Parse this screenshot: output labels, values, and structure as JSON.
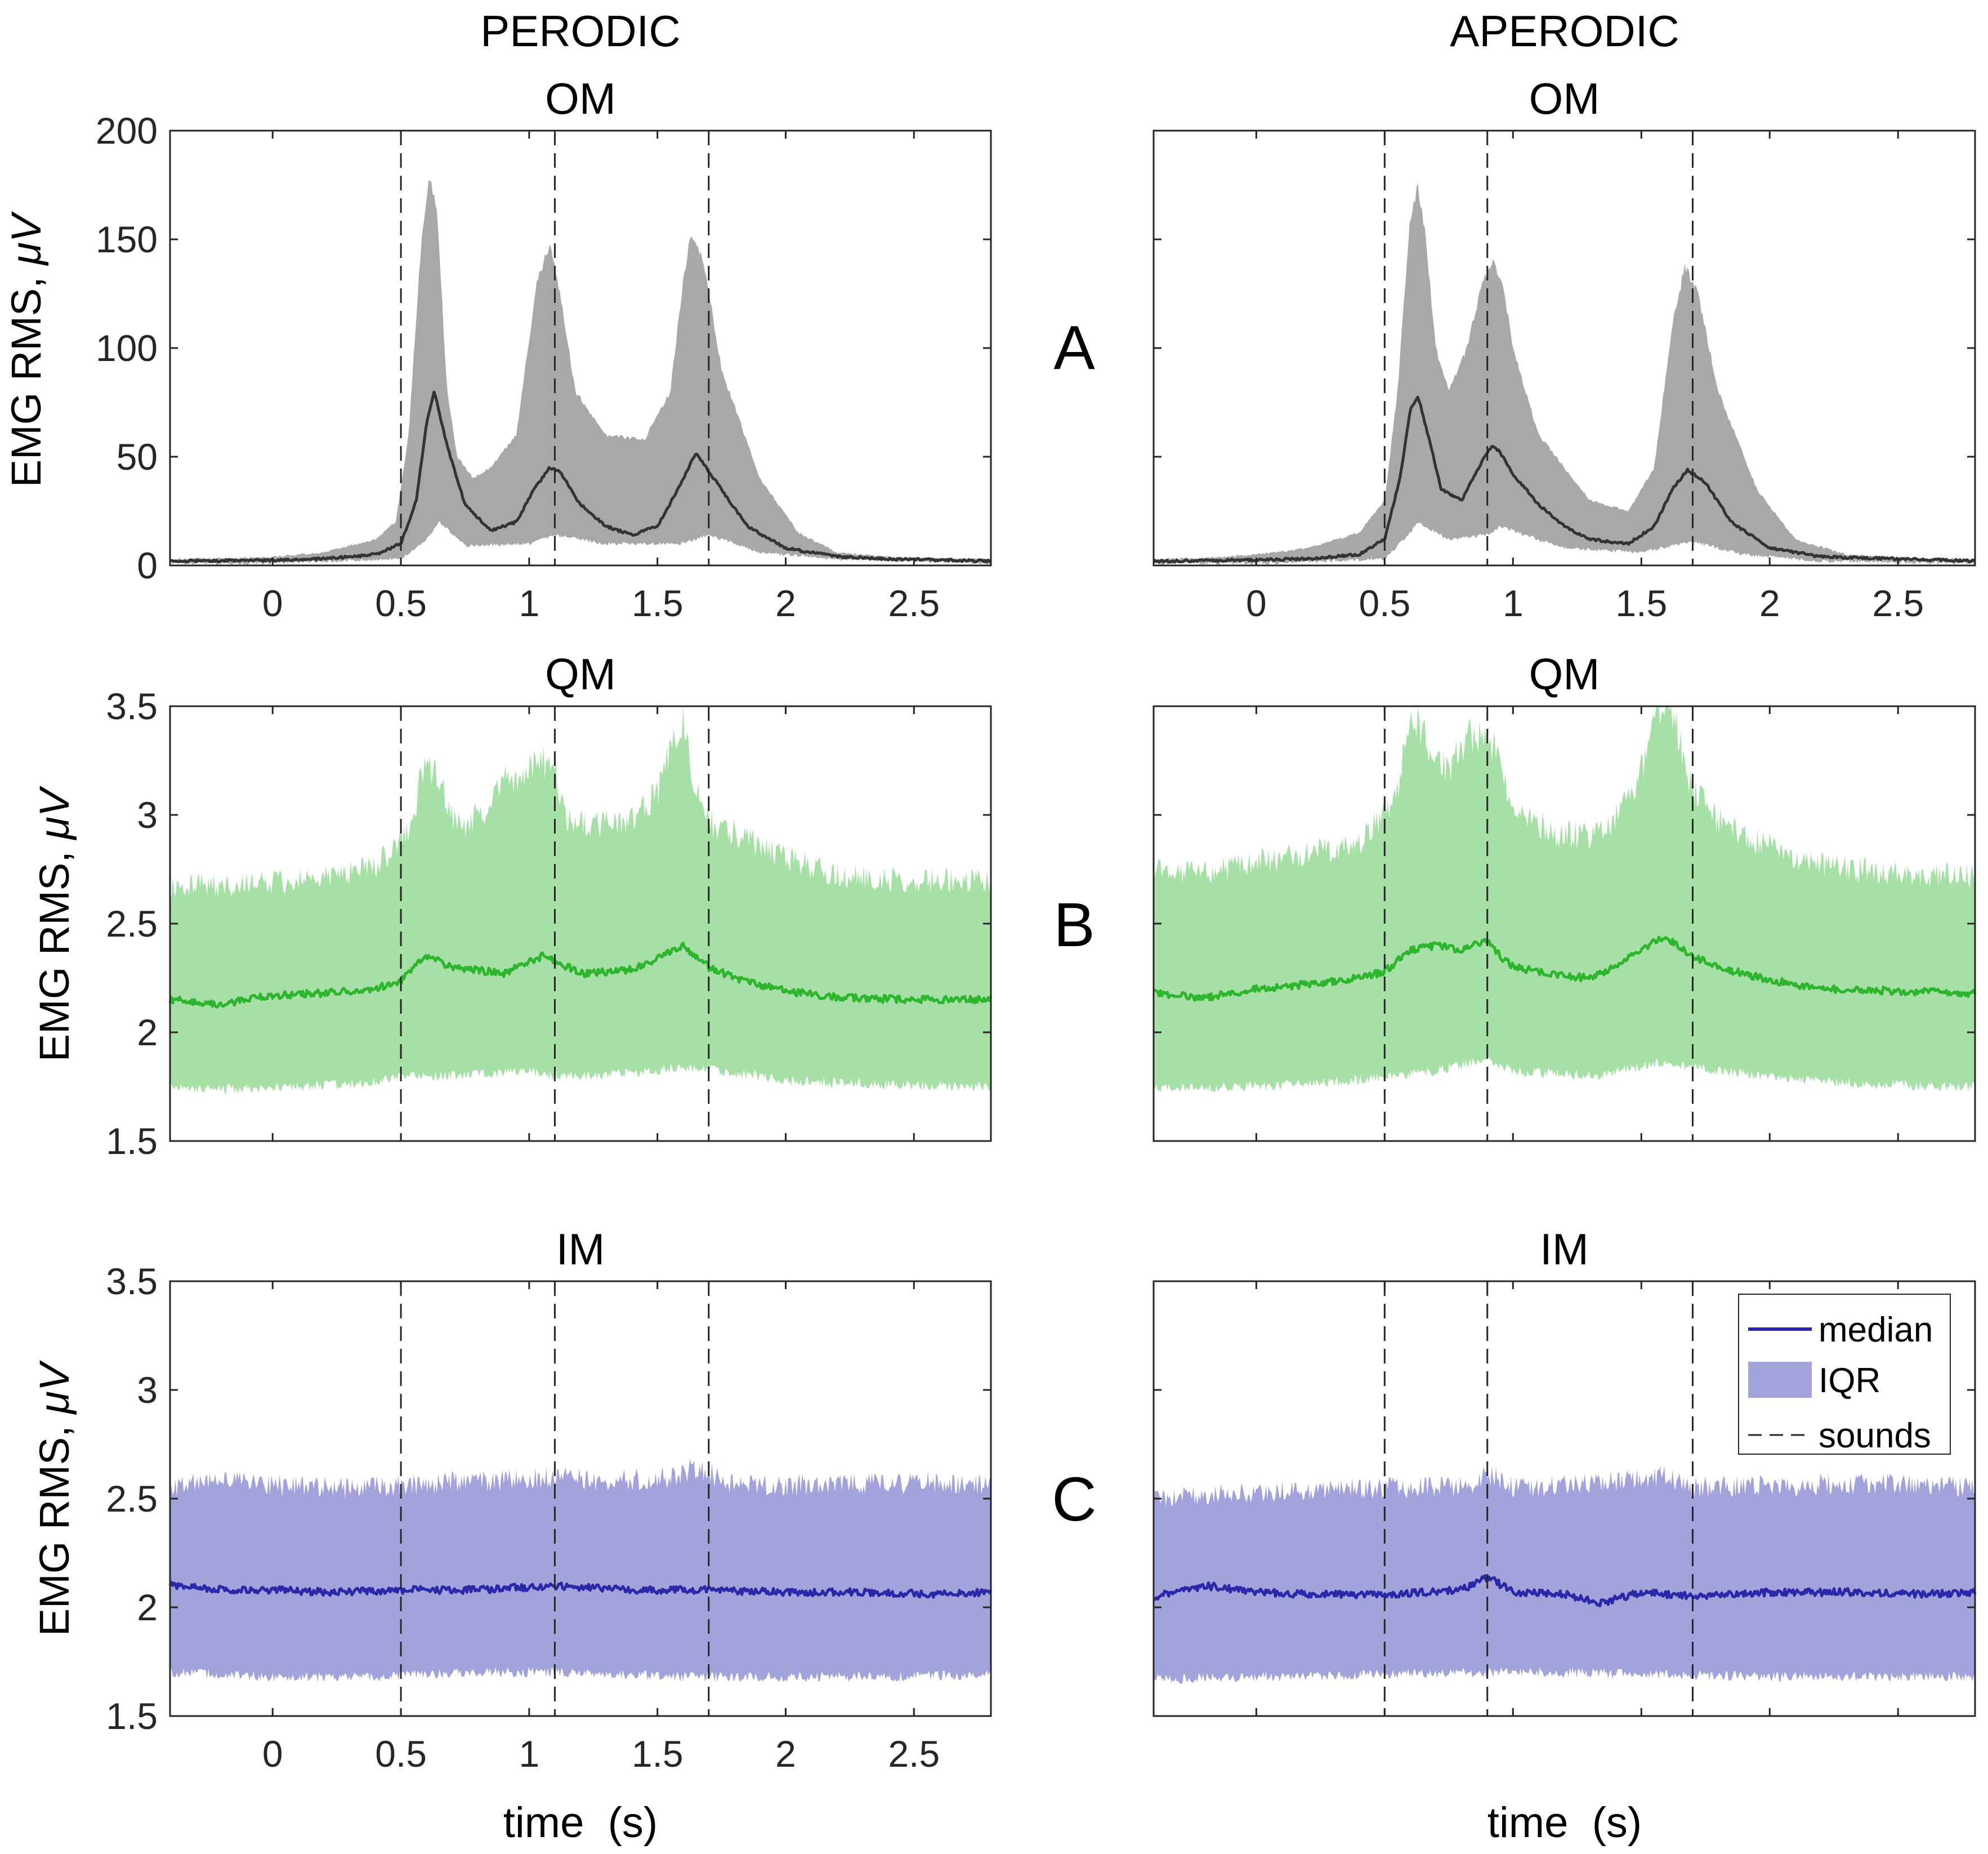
{
  "columns": [
    {
      "title": "PERODIC"
    },
    {
      "title": "APERODIC"
    }
  ],
  "rows": [
    {
      "letter": "A",
      "color": "#333333",
      "band_color": "#a8a8a8"
    },
    {
      "letter": "B",
      "color": "#2db52d",
      "band_color": "#a6e0a6"
    },
    {
      "letter": "C",
      "color": "#2828a8",
      "band_color": "#a3a3dc"
    }
  ],
  "xlabel": "time  (s)",
  "ylabel_prefix": "EMG RMS, ",
  "ylabel_unit": "μV",
  "legend": {
    "median": "median",
    "iqr": "IQR",
    "sounds": "sounds"
  },
  "chart_data": [
    {
      "type": "area",
      "panel": "periodic-OM",
      "title": "OM",
      "xlim": [
        -0.4,
        2.8
      ],
      "ylim": [
        0,
        200
      ],
      "xticks": [
        0,
        0.5,
        1,
        1.5,
        2,
        2.5
      ],
      "yticks": [
        0,
        50,
        100,
        150,
        200
      ],
      "sounds": [
        0.5,
        1.1,
        1.7
      ],
      "series": [
        {
          "name": "median",
          "x": [
            -0.4,
            -0.2,
            0,
            0.2,
            0.4,
            0.5,
            0.56,
            0.6,
            0.63,
            0.68,
            0.75,
            0.85,
            0.95,
            1.02,
            1.08,
            1.12,
            1.2,
            1.3,
            1.4,
            1.5,
            1.58,
            1.65,
            1.72,
            1.85,
            2.0,
            2.2,
            2.4,
            2.6,
            2.8
          ],
          "y": [
            2,
            2.2,
            2.5,
            3,
            5,
            10,
            30,
            65,
            80,
            55,
            28,
            16,
            20,
            35,
            45,
            43,
            28,
            18,
            14,
            18,
            35,
            52,
            40,
            18,
            8,
            4,
            3,
            2.5,
            2
          ]
        },
        {
          "name": "IQR upper",
          "x": [
            -0.4,
            -0.2,
            0,
            0.2,
            0.4,
            0.48,
            0.53,
            0.58,
            0.61,
            0.64,
            0.68,
            0.72,
            0.78,
            0.85,
            0.95,
            1.03,
            1.08,
            1.12,
            1.18,
            1.3,
            1.45,
            1.55,
            1.6,
            1.63,
            1.68,
            1.75,
            1.9,
            2.05,
            2.2,
            2.4,
            2.6,
            2.8
          ],
          "y": [
            3,
            3.2,
            4,
            6,
            12,
            20,
            60,
            150,
            178,
            165,
            80,
            50,
            40,
            45,
            60,
            130,
            148,
            125,
            80,
            60,
            58,
            80,
            130,
            152,
            140,
            90,
            40,
            15,
            6,
            4,
            3,
            3
          ]
        },
        {
          "name": "IQR lower",
          "x": [
            -0.4,
            0,
            0.5,
            0.6,
            0.65,
            0.75,
            1.0,
            1.1,
            1.3,
            1.6,
            1.7,
            1.9,
            2.2,
            2.8
          ],
          "y": [
            1,
            1,
            3,
            12,
            20,
            9,
            10,
            14,
            10,
            10,
            14,
            6,
            3,
            1
          ]
        }
      ]
    },
    {
      "type": "area",
      "panel": "aperiodic-OM",
      "title": "OM",
      "xlim": [
        -0.4,
        2.8
      ],
      "ylim": [
        0,
        200
      ],
      "xticks": [
        0,
        0.5,
        1,
        1.5,
        2,
        2.5
      ],
      "sounds": [
        0.5,
        0.9,
        1.7
      ],
      "series": [
        {
          "name": "median",
          "x": [
            -0.4,
            -0.2,
            0,
            0.2,
            0.4,
            0.5,
            0.56,
            0.6,
            0.63,
            0.68,
            0.72,
            0.8,
            0.88,
            0.92,
            0.95,
            1.0,
            1.1,
            1.2,
            1.3,
            1.45,
            1.55,
            1.62,
            1.68,
            1.75,
            1.85,
            2.0,
            2.2,
            2.5,
            2.8
          ],
          "y": [
            2,
            2.2,
            2.5,
            3,
            5,
            12,
            40,
            72,
            78,
            55,
            35,
            30,
            48,
            55,
            52,
            42,
            28,
            18,
            12,
            10,
            18,
            35,
            44,
            38,
            20,
            8,
            4,
            3,
            2
          ]
        },
        {
          "name": "IQR upper",
          "x": [
            -0.4,
            -0.2,
            0,
            0.2,
            0.4,
            0.5,
            0.55,
            0.6,
            0.63,
            0.66,
            0.7,
            0.75,
            0.82,
            0.88,
            0.92,
            0.96,
            1.0,
            1.1,
            1.2,
            1.3,
            1.45,
            1.55,
            1.62,
            1.67,
            1.72,
            1.8,
            1.95,
            2.1,
            2.3,
            2.6,
            2.8
          ],
          "y": [
            3,
            3.5,
            5,
            8,
            15,
            30,
            80,
            160,
            175,
            150,
            100,
            80,
            100,
            130,
            140,
            130,
            100,
            60,
            45,
            30,
            25,
            45,
            110,
            138,
            125,
            80,
            35,
            12,
            5,
            3,
            3
          ]
        },
        {
          "name": "IQR lower",
          "x": [
            -0.4,
            0,
            0.5,
            0.6,
            0.63,
            0.75,
            0.9,
            0.95,
            1.2,
            1.5,
            1.7,
            1.9,
            2.2,
            2.8
          ],
          "y": [
            1,
            1,
            3,
            15,
            20,
            12,
            14,
            18,
            8,
            6,
            11,
            5,
            2,
            1
          ]
        }
      ]
    },
    {
      "type": "area",
      "panel": "periodic-QM",
      "title": "QM",
      "xlim": [
        -0.4,
        2.8
      ],
      "ylim": [
        1.5,
        3.5
      ],
      "yticks": [
        1.5,
        2,
        2.5,
        3,
        3.5
      ],
      "sounds": [
        0.5,
        1.1,
        1.7
      ],
      "series": [
        {
          "name": "median",
          "x": [
            -0.4,
            -0.2,
            0,
            0.2,
            0.4,
            0.5,
            0.6,
            0.7,
            0.9,
            1.05,
            1.1,
            1.2,
            1.4,
            1.5,
            1.6,
            1.7,
            1.8,
            2.0,
            2.2,
            2.5,
            2.8
          ],
          "y": [
            2.15,
            2.13,
            2.17,
            2.18,
            2.2,
            2.24,
            2.35,
            2.3,
            2.27,
            2.35,
            2.33,
            2.27,
            2.29,
            2.34,
            2.4,
            2.3,
            2.25,
            2.19,
            2.16,
            2.15,
            2.15
          ]
        },
        {
          "name": "IQR upper",
          "x": [
            -0.4,
            -0.2,
            0,
            0.2,
            0.4,
            0.5,
            0.55,
            0.58,
            0.65,
            0.7,
            0.75,
            0.85,
            0.92,
            1.0,
            1.05,
            1.1,
            1.15,
            1.25,
            1.4,
            1.5,
            1.55,
            1.6,
            1.65,
            1.7,
            1.8,
            2.0,
            2.2,
            2.5,
            2.8
          ],
          "y": [
            2.68,
            2.68,
            2.69,
            2.71,
            2.76,
            2.88,
            2.95,
            3.22,
            3.18,
            2.98,
            2.95,
            3.05,
            3.18,
            3.2,
            3.25,
            3.2,
            2.98,
            2.95,
            2.97,
            3.1,
            3.3,
            3.45,
            3.1,
            2.96,
            2.92,
            2.8,
            2.72,
            2.7,
            2.7
          ]
        },
        {
          "name": "IQR lower",
          "x": [
            -0.4,
            0,
            0.4,
            0.5,
            0.7,
            1.0,
            1.1,
            1.3,
            1.6,
            1.7,
            2.0,
            2.4,
            2.8
          ],
          "y": [
            1.74,
            1.74,
            1.77,
            1.8,
            1.8,
            1.82,
            1.8,
            1.8,
            1.84,
            1.83,
            1.78,
            1.76,
            1.75
          ]
        }
      ]
    },
    {
      "type": "area",
      "panel": "aperiodic-QM",
      "title": "QM",
      "xlim": [
        -0.4,
        2.8
      ],
      "ylim": [
        1.5,
        3.5
      ],
      "sounds": [
        0.5,
        0.9,
        1.7
      ],
      "series": [
        {
          "name": "median",
          "x": [
            -0.4,
            -0.2,
            0,
            0.2,
            0.4,
            0.5,
            0.6,
            0.7,
            0.8,
            0.9,
            0.95,
            1.0,
            1.1,
            1.2,
            1.3,
            1.4,
            1.55,
            1.6,
            1.7,
            1.8,
            2.0,
            2.2,
            2.5,
            2.8
          ],
          "y": [
            2.18,
            2.16,
            2.2,
            2.22,
            2.25,
            2.28,
            2.38,
            2.4,
            2.38,
            2.42,
            2.35,
            2.3,
            2.28,
            2.26,
            2.25,
            2.3,
            2.42,
            2.43,
            2.35,
            2.3,
            2.24,
            2.2,
            2.19,
            2.18
          ]
        },
        {
          "name": "IQR upper",
          "x": [
            -0.4,
            -0.2,
            0,
            0.2,
            0.4,
            0.5,
            0.55,
            0.6,
            0.68,
            0.75,
            0.82,
            0.88,
            0.93,
            0.98,
            1.05,
            1.15,
            1.3,
            1.4,
            1.5,
            1.55,
            1.6,
            1.65,
            1.7,
            1.8,
            1.95,
            2.1,
            2.3,
            2.6,
            2.8
          ],
          "y": [
            2.75,
            2.73,
            2.78,
            2.82,
            2.88,
            3.0,
            3.1,
            3.5,
            3.3,
            3.2,
            3.35,
            3.38,
            3.3,
            3.1,
            3.0,
            2.92,
            2.9,
            2.98,
            3.2,
            3.45,
            3.55,
            3.35,
            3.1,
            2.98,
            2.88,
            2.8,
            2.75,
            2.72,
            2.72
          ]
        },
        {
          "name": "IQR lower",
          "x": [
            -0.4,
            0,
            0.4,
            0.5,
            0.7,
            0.9,
            1.0,
            1.3,
            1.6,
            1.7,
            2.0,
            2.4,
            2.8
          ],
          "y": [
            1.74,
            1.75,
            1.78,
            1.8,
            1.82,
            1.88,
            1.82,
            1.8,
            1.86,
            1.84,
            1.79,
            1.76,
            1.75
          ]
        }
      ]
    },
    {
      "type": "area",
      "panel": "periodic-IM",
      "title": "IM",
      "xlim": [
        -0.4,
        2.8
      ],
      "ylim": [
        1.5,
        3.5
      ],
      "xticks": [
        0,
        0.5,
        1,
        1.5,
        2,
        2.5
      ],
      "yticks": [
        1.5,
        2,
        2.5,
        3,
        3.5
      ],
      "sounds": [
        0.5,
        1.1,
        1.7
      ],
      "series": [
        {
          "name": "median",
          "x": [
            -0.4,
            -0.2,
            0,
            0.2,
            0.5,
            0.8,
            1.1,
            1.4,
            1.7,
            2.0,
            2.3,
            2.6,
            2.8
          ],
          "y": [
            2.1,
            2.08,
            2.08,
            2.07,
            2.08,
            2.08,
            2.1,
            2.08,
            2.08,
            2.07,
            2.07,
            2.06,
            2.07
          ]
        },
        {
          "name": "IQR upper",
          "x": [
            -0.4,
            -0.2,
            0,
            0.3,
            0.6,
            0.9,
            1.1,
            1.3,
            1.55,
            1.65,
            1.8,
            2.1,
            2.4,
            2.6,
            2.8
          ],
          "y": [
            2.55,
            2.6,
            2.56,
            2.55,
            2.57,
            2.58,
            2.6,
            2.58,
            2.6,
            2.64,
            2.57,
            2.56,
            2.57,
            2.58,
            2.56
          ]
        },
        {
          "name": "IQR lower",
          "x": [
            -0.4,
            0,
            0.4,
            0.8,
            1.2,
            1.6,
            2.0,
            2.4,
            2.8
          ],
          "y": [
            1.7,
            1.68,
            1.68,
            1.7,
            1.7,
            1.68,
            1.68,
            1.68,
            1.69
          ]
        }
      ]
    },
    {
      "type": "area",
      "panel": "aperiodic-IM",
      "title": "IM",
      "xlim": [
        -0.4,
        2.8
      ],
      "ylim": [
        1.5,
        3.5
      ],
      "sounds": [
        0.5,
        0.9,
        1.7
      ],
      "series": [
        {
          "name": "median",
          "x": [
            -0.4,
            -0.2,
            0,
            0.2,
            0.5,
            0.8,
            0.9,
            1.0,
            1.2,
            1.35,
            1.5,
            1.7,
            2.0,
            2.3,
            2.6,
            2.8
          ],
          "y": [
            2.05,
            2.1,
            2.07,
            2.06,
            2.06,
            2.08,
            2.14,
            2.07,
            2.06,
            2.02,
            2.07,
            2.05,
            2.07,
            2.07,
            2.06,
            2.07
          ]
        },
        {
          "name": "IQR upper",
          "x": [
            -0.4,
            -0.2,
            0,
            0.3,
            0.6,
            0.85,
            0.9,
            1.0,
            1.3,
            1.6,
            1.7,
            2.0,
            2.4,
            2.8
          ],
          "y": [
            2.5,
            2.52,
            2.53,
            2.55,
            2.55,
            2.56,
            2.62,
            2.55,
            2.57,
            2.6,
            2.55,
            2.56,
            2.57,
            2.55
          ]
        },
        {
          "name": "IQR lower",
          "x": [
            -0.4,
            0,
            0.4,
            0.8,
            1.2,
            1.6,
            2.0,
            2.4,
            2.8
          ],
          "y": [
            1.67,
            1.68,
            1.69,
            1.7,
            1.7,
            1.69,
            1.68,
            1.68,
            1.68
          ]
        }
      ]
    }
  ]
}
